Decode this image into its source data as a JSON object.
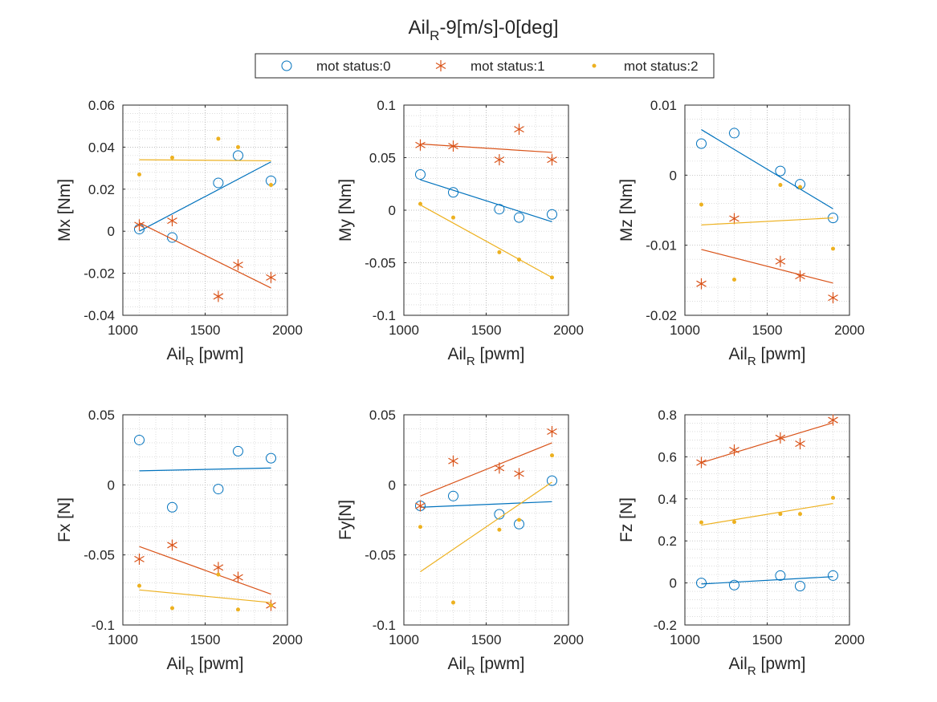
{
  "figure": {
    "title_main": "Ail",
    "title_sub": "R",
    "title_rest": "-9[m/s]-0[deg]"
  },
  "legend": {
    "placement": "top-center",
    "entries": [
      {
        "label": "mot status:0",
        "marker": "circle",
        "color": "#0072BD"
      },
      {
        "label": "mot status:1",
        "marker": "asterisk",
        "color": "#D95319"
      },
      {
        "label": "mot status:2",
        "marker": "dot",
        "color": "#EDB120"
      }
    ]
  },
  "chart_data": [
    {
      "type": "scatter",
      "ylabel": "Mx [Nm]",
      "xlabel_main": "Ail",
      "xlabel_sub": "R",
      "xlabel_rest": " [pwm]",
      "xlim": [
        1000,
        2000
      ],
      "ylim": [
        -0.04,
        0.06
      ],
      "xticks": [
        1000,
        1500,
        2000
      ],
      "yticks": [
        -0.04,
        -0.02,
        0,
        0.02,
        0.04,
        0.06
      ],
      "yticklabels": [
        "-0.04",
        "-0.02",
        "0",
        "0.02",
        "0.04",
        "0.06"
      ],
      "grid": true,
      "series": [
        {
          "name": "mot status:0",
          "x": [
            1100,
            1300,
            1580,
            1700,
            1900
          ],
          "y": [
            0.001,
            -0.003,
            0.023,
            0.036,
            0.024
          ],
          "fit": [
            [
              1100,
              0.0
            ],
            [
              1900,
              0.033
            ]
          ]
        },
        {
          "name": "mot status:1",
          "x": [
            1100,
            1300,
            1580,
            1700,
            1900
          ],
          "y": [
            0.003,
            0.005,
            -0.031,
            -0.016,
            -0.022
          ],
          "fit": [
            [
              1100,
              0.004
            ],
            [
              1900,
              -0.027
            ]
          ]
        },
        {
          "name": "mot status:2",
          "x": [
            1100,
            1300,
            1580,
            1700,
            1900
          ],
          "y": [
            0.027,
            0.035,
            0.044,
            0.04,
            0.022
          ],
          "fit": [
            [
              1100,
              0.034
            ],
            [
              1900,
              0.0335
            ]
          ]
        }
      ]
    },
    {
      "type": "scatter",
      "ylabel": "My [Nm]",
      "xlabel_main": "Ail",
      "xlabel_sub": "R",
      "xlabel_rest": " [pwm]",
      "xlim": [
        1000,
        2000
      ],
      "ylim": [
        -0.1,
        0.1
      ],
      "xticks": [
        1000,
        1500,
        2000
      ],
      "yticks": [
        -0.1,
        -0.05,
        0,
        0.05,
        0.1
      ],
      "yticklabels": [
        "-0.1",
        "-0.05",
        "0",
        "0.05",
        "0.1"
      ],
      "grid": true,
      "series": [
        {
          "name": "mot status:0",
          "x": [
            1100,
            1300,
            1580,
            1700,
            1900
          ],
          "y": [
            0.034,
            0.017,
            0.001,
            -0.007,
            -0.004
          ],
          "fit": [
            [
              1100,
              0.029
            ],
            [
              1900,
              -0.011
            ]
          ]
        },
        {
          "name": "mot status:1",
          "x": [
            1100,
            1300,
            1580,
            1700,
            1900
          ],
          "y": [
            0.062,
            0.061,
            0.048,
            0.077,
            0.048
          ],
          "fit": [
            [
              1100,
              0.063
            ],
            [
              1900,
              0.055
            ]
          ]
        },
        {
          "name": "mot status:2",
          "x": [
            1100,
            1300,
            1580,
            1700,
            1900
          ],
          "y": [
            0.006,
            -0.007,
            -0.04,
            -0.047,
            -0.064
          ],
          "fit": [
            [
              1100,
              0.005
            ],
            [
              1900,
              -0.064
            ]
          ]
        }
      ]
    },
    {
      "type": "scatter",
      "ylabel": "Mz [Nm]",
      "xlabel_main": "Ail",
      "xlabel_sub": "R",
      "xlabel_rest": " [pwm]",
      "xlim": [
        1000,
        2000
      ],
      "ylim": [
        -0.02,
        0.01
      ],
      "xticks": [
        1000,
        1500,
        2000
      ],
      "yticks": [
        -0.02,
        -0.01,
        0,
        0.01
      ],
      "yticklabels": [
        "-0.02",
        "-0.01",
        "0",
        "0.01"
      ],
      "grid": true,
      "series": [
        {
          "name": "mot status:0",
          "x": [
            1100,
            1300,
            1580,
            1700,
            1900
          ],
          "y": [
            0.0045,
            0.006,
            0.0006,
            -0.0013,
            -0.0061
          ],
          "fit": [
            [
              1100,
              0.0065
            ],
            [
              1900,
              -0.0048
            ]
          ]
        },
        {
          "name": "mot status:1",
          "x": [
            1100,
            1300,
            1580,
            1700,
            1900
          ],
          "y": [
            -0.0155,
            -0.0062,
            -0.0123,
            -0.0144,
            -0.0175
          ],
          "fit": [
            [
              1100,
              -0.0106
            ],
            [
              1900,
              -0.0154
            ]
          ]
        },
        {
          "name": "mot status:2",
          "x": [
            1100,
            1300,
            1580,
            1700,
            1900
          ],
          "y": [
            -0.0042,
            -0.0149,
            -0.0014,
            -0.0017,
            -0.0105
          ],
          "fit": [
            [
              1100,
              -0.0071
            ],
            [
              1900,
              -0.0061
            ]
          ]
        }
      ]
    },
    {
      "type": "scatter",
      "ylabel": "Fx [N]",
      "xlabel_main": "Ail",
      "xlabel_sub": "R",
      "xlabel_rest": " [pwm]",
      "xlim": [
        1000,
        2000
      ],
      "ylim": [
        -0.1,
        0.05
      ],
      "xticks": [
        1000,
        1500,
        2000
      ],
      "yticks": [
        -0.1,
        -0.05,
        0,
        0.05
      ],
      "yticklabels": [
        "-0.1",
        "-0.05",
        "0",
        "0.05"
      ],
      "grid": true,
      "series": [
        {
          "name": "mot status:0",
          "x": [
            1100,
            1300,
            1580,
            1700,
            1900
          ],
          "y": [
            0.032,
            -0.016,
            -0.003,
            0.024,
            0.019
          ],
          "fit": [
            [
              1100,
              0.01
            ],
            [
              1900,
              0.012
            ]
          ]
        },
        {
          "name": "mot status:1",
          "x": [
            1100,
            1300,
            1580,
            1700,
            1900
          ],
          "y": [
            -0.053,
            -0.043,
            -0.059,
            -0.066,
            -0.086
          ],
          "fit": [
            [
              1100,
              -0.044
            ],
            [
              1900,
              -0.078
            ]
          ]
        },
        {
          "name": "mot status:2",
          "x": [
            1100,
            1300,
            1580,
            1700,
            1900
          ],
          "y": [
            -0.072,
            -0.088,
            -0.064,
            -0.089,
            -0.086
          ],
          "fit": [
            [
              1100,
              -0.075
            ],
            [
              1900,
              -0.084
            ]
          ]
        }
      ]
    },
    {
      "type": "scatter",
      "ylabel": "Fy[N]",
      "xlabel_main": "Ail",
      "xlabel_sub": "R",
      "xlabel_rest": " [pwm]",
      "xlim": [
        1000,
        2000
      ],
      "ylim": [
        -0.1,
        0.05
      ],
      "xticks": [
        1000,
        1500,
        2000
      ],
      "yticks": [
        -0.1,
        -0.05,
        0,
        0.05
      ],
      "yticklabels": [
        "-0.1",
        "-0.05",
        "0",
        "0.05"
      ],
      "grid": true,
      "series": [
        {
          "name": "mot status:0",
          "x": [
            1100,
            1300,
            1580,
            1700,
            1900
          ],
          "y": [
            -0.015,
            -0.008,
            -0.021,
            -0.028,
            0.003
          ],
          "fit": [
            [
              1100,
              -0.016
            ],
            [
              1900,
              -0.012
            ]
          ]
        },
        {
          "name": "mot status:1",
          "x": [
            1100,
            1300,
            1580,
            1700,
            1900
          ],
          "y": [
            -0.015,
            0.017,
            0.012,
            0.008,
            0.038
          ],
          "fit": [
            [
              1100,
              -0.008
            ],
            [
              1900,
              0.03
            ]
          ]
        },
        {
          "name": "mot status:2",
          "x": [
            1100,
            1300,
            1580,
            1700,
            1900
          ],
          "y": [
            -0.03,
            -0.084,
            -0.032,
            -0.025,
            0.021
          ],
          "fit": [
            [
              1100,
              -0.062
            ],
            [
              1900,
              0.002
            ]
          ]
        }
      ]
    },
    {
      "type": "scatter",
      "ylabel": "Fz [N]",
      "xlabel_main": "Ail",
      "xlabel_sub": "R",
      "xlabel_rest": " [pwm]",
      "xlim": [
        1000,
        2000
      ],
      "ylim": [
        -0.2,
        0.8
      ],
      "xticks": [
        1000,
        1500,
        2000
      ],
      "yticks": [
        -0.2,
        0,
        0.2,
        0.4,
        0.6,
        0.8
      ],
      "yticklabels": [
        "-0.2",
        "0",
        "0.2",
        "0.4",
        "0.6",
        "0.8"
      ],
      "grid": true,
      "series": [
        {
          "name": "mot status:0",
          "x": [
            1100,
            1300,
            1580,
            1700,
            1900
          ],
          "y": [
            0.0,
            -0.01,
            0.035,
            -0.015,
            0.035
          ],
          "fit": [
            [
              1100,
              -0.005
            ],
            [
              1900,
              0.03
            ]
          ]
        },
        {
          "name": "mot status:1",
          "x": [
            1100,
            1300,
            1580,
            1700,
            1900
          ],
          "y": [
            0.573,
            0.632,
            0.69,
            0.662,
            0.775
          ],
          "fit": [
            [
              1100,
              0.572
            ],
            [
              1900,
              0.762
            ]
          ]
        },
        {
          "name": "mot status:2",
          "x": [
            1100,
            1300,
            1580,
            1700,
            1900
          ],
          "y": [
            0.288,
            0.29,
            0.328,
            0.328,
            0.405
          ],
          "fit": [
            [
              1100,
              0.275
            ],
            [
              1900,
              0.378
            ]
          ]
        }
      ]
    }
  ]
}
